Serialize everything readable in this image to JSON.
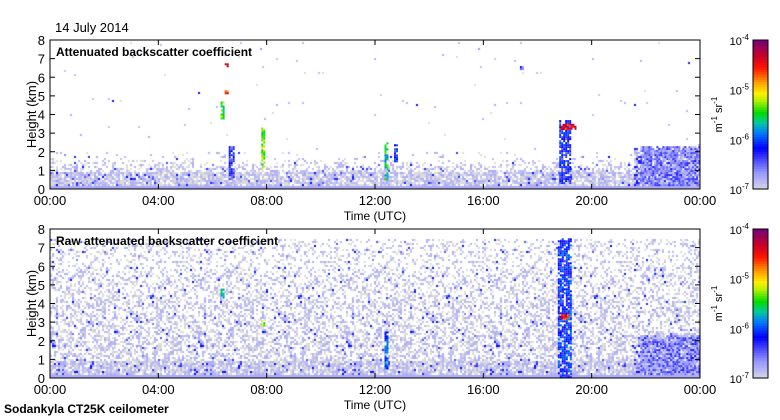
{
  "chart_data": [
    {
      "type": "heatmap",
      "date": "14 July 2014",
      "title": "Attenuated backscatter coefficient",
      "xlabel": "Time (UTC)",
      "ylabel": "Height (km)",
      "xlim_hours": [
        0,
        24
      ],
      "ylim_km": [
        0,
        8
      ],
      "x_ticks": [
        "00:00",
        "04:00",
        "08:00",
        "12:00",
        "16:00",
        "20:00",
        "00:00"
      ],
      "y_ticks": [
        "0",
        "1",
        "2",
        "3",
        "4",
        "5",
        "6",
        "7",
        "8"
      ],
      "background_top_km": 1.6,
      "features": [
        {
          "t0": 6.3,
          "t1": 6.4,
          "h0": 3.8,
          "h1": 4.7,
          "log10": -5.4
        },
        {
          "t0": 6.45,
          "t1": 6.55,
          "h0": 6.6,
          "h1": 6.75,
          "log10": -4.3
        },
        {
          "t0": 6.45,
          "t1": 6.55,
          "h0": 5.15,
          "h1": 5.3,
          "log10": -4.6
        },
        {
          "t0": 6.6,
          "t1": 6.8,
          "h0": 0.5,
          "h1": 2.3,
          "log10": -6.3
        },
        {
          "t0": 7.8,
          "t1": 7.9,
          "h0": 1.1,
          "h1": 3.3,
          "log10": -5.3
        },
        {
          "t0": 12.35,
          "t1": 12.45,
          "h0": 0.5,
          "h1": 2.5,
          "log10": -5.6
        },
        {
          "t0": 12.7,
          "t1": 12.8,
          "h0": 1.5,
          "h1": 2.4,
          "log10": -6.2
        },
        {
          "t0": 17.35,
          "t1": 17.45,
          "h0": 6.4,
          "h1": 6.6,
          "log10": -6.4
        },
        {
          "t0": 18.8,
          "t1": 19.2,
          "h0": 0.3,
          "h1": 3.7,
          "log10": -6.2
        },
        {
          "t0": 18.85,
          "t1": 19.4,
          "h0": 3.2,
          "h1": 3.5,
          "log10": -4.4
        },
        {
          "t0": 21.8,
          "t1": 24,
          "h0": 0.2,
          "h1": 2.3,
          "log10": -6.6
        }
      ]
    },
    {
      "type": "heatmap",
      "title": "Raw attenuated backscatter coefficient",
      "xlabel": "Time (UTC)",
      "ylabel": "Height (km)",
      "xlim_hours": [
        0,
        24
      ],
      "ylim_km": [
        0,
        8
      ],
      "x_ticks": [
        "00:00",
        "04:00",
        "08:00",
        "12:00",
        "16:00",
        "20:00",
        "00:00"
      ],
      "y_ticks": [
        "0",
        "1",
        "2",
        "3",
        "4",
        "5",
        "6",
        "7",
        "8"
      ],
      "background_top_km": 7.5,
      "features": [
        {
          "t0": 6.3,
          "t1": 6.4,
          "h0": 4.3,
          "h1": 4.8,
          "log10": -5.6
        },
        {
          "t0": 7.8,
          "t1": 7.9,
          "h0": 2.8,
          "h1": 3.1,
          "log10": -5.2
        },
        {
          "t0": 12.35,
          "t1": 12.45,
          "h0": 0.5,
          "h1": 2.5,
          "log10": -6.0
        },
        {
          "t0": 18.75,
          "t1": 19.2,
          "h0": 0.0,
          "h1": 7.5,
          "log10": -6.1
        },
        {
          "t0": 18.8,
          "t1": 19.1,
          "h0": 3.2,
          "h1": 3.45,
          "log10": -4.4
        },
        {
          "t0": 21.8,
          "t1": 24,
          "h0": 0.2,
          "h1": 2.3,
          "log10": -6.6
        }
      ]
    }
  ],
  "colorbar": {
    "ticks": [
      {
        "base": "10",
        "exp": "-4"
      },
      {
        "base": "10",
        "exp": "-5"
      },
      {
        "base": "10",
        "exp": "-6"
      },
      {
        "base": "10",
        "exp": "-7"
      }
    ],
    "label_base": "m",
    "label_exp1": "-1",
    "label_mid": " sr",
    "label_exp2": "-1",
    "range_log10": [
      -7,
      -4
    ]
  },
  "footer": "Sodankyla CT25K ceilometer"
}
